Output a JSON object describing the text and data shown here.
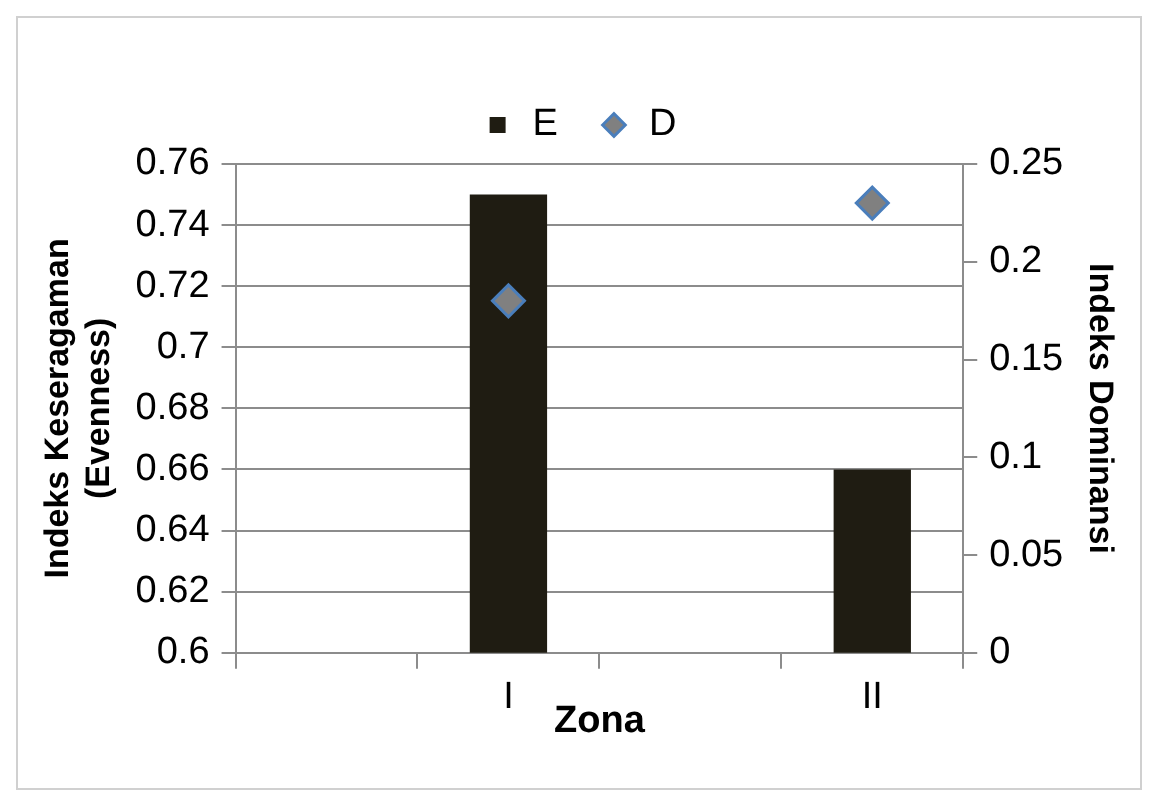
{
  "chart_data": {
    "type": "bar",
    "xlabel": "Zona",
    "ylabel": "Indeks Keseragaman (Evenness)",
    "y2label": "Indeks Dominansi",
    "categories": [
      null,
      "I",
      null,
      "II"
    ],
    "series": [
      {
        "name": "E",
        "color": "#1f1c12",
        "values": [
          null,
          0.75,
          null,
          0.66
        ]
      },
      {
        "name": "D",
        "type": "scatter",
        "axis": "y2",
        "color": "#4a7ebb",
        "marker": "diamond",
        "values": [
          null,
          0.18,
          null,
          0.23
        ]
      }
    ],
    "ylim": [
      0.6,
      0.76
    ],
    "yticks": [
      0.6,
      0.62,
      0.64,
      0.66,
      0.68,
      0.7,
      0.72,
      0.74,
      0.76
    ],
    "y2lim": [
      0,
      0.25
    ],
    "y2ticks": [
      0,
      0.05,
      0.1,
      0.15,
      0.2,
      0.25
    ],
    "grid": "y",
    "legend": "top"
  }
}
